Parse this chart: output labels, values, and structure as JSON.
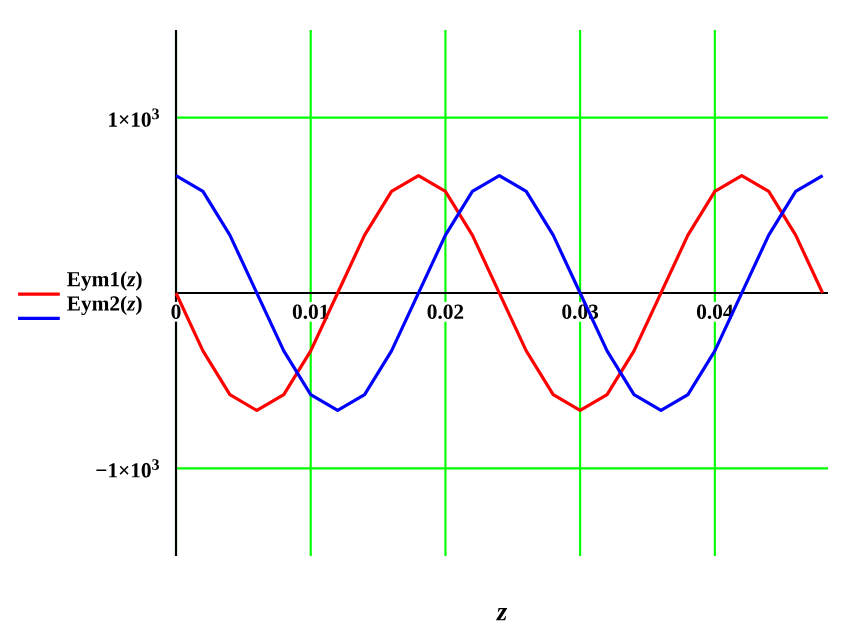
{
  "chart_data": {
    "type": "line",
    "xlabel": "z",
    "x": [
      0,
      0.002,
      0.004,
      0.006,
      0.008,
      0.01,
      0.012,
      0.014,
      0.016,
      0.018,
      0.02,
      0.022,
      0.024,
      0.026,
      0.028,
      0.03,
      0.032,
      0.034,
      0.036,
      0.038,
      0.04,
      0.042,
      0.044,
      0.046,
      0.048
    ],
    "series": [
      {
        "name": "Eym1(*z*)",
        "color": "#ff0000",
        "values": [
          0,
          -330,
          -580,
          -670,
          -580,
          -330,
          0,
          330,
          580,
          670,
          580,
          330,
          0,
          -330,
          -580,
          -670,
          -580,
          -330,
          0,
          330,
          580,
          670,
          580,
          330,
          0
        ]
      },
      {
        "name": "Eym2(*z*)",
        "color": "#0000ff",
        "values": [
          670,
          580,
          330,
          0,
          -330,
          -580,
          -670,
          -580,
          -330,
          0,
          330,
          580,
          670,
          580,
          330,
          0,
          -330,
          -580,
          -670,
          -580,
          -330,
          0,
          330,
          580,
          670
        ]
      }
    ],
    "xlim": [
      0,
      0.0484
    ],
    "ylim": [
      -1500,
      1500
    ],
    "xticks": [
      0,
      0.01,
      0.02,
      0.03,
      0.04
    ],
    "yticks": [
      {
        "value": -1000,
        "label": "−1×10$^{3}$"
      },
      {
        "value": 1000,
        "label": "1×10$^{3}$"
      }
    ],
    "grid": true,
    "legend": "left",
    "marker": "none",
    "line_style": "solid"
  }
}
